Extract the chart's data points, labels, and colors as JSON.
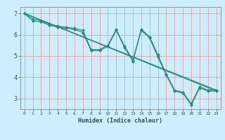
{
  "xlabel": "Humidex (Indice chaleur)",
  "bg_color": "#cceeff",
  "grid_color": "#e8a0a0",
  "line_color": "#2e8b7a",
  "marker_color": "#2e8b7a",
  "xlim": [
    -0.5,
    23.5
  ],
  "ylim": [
    2.5,
    7.3
  ],
  "yticks": [
    3,
    4,
    5,
    6,
    7
  ],
  "xticks": [
    0,
    1,
    2,
    3,
    4,
    5,
    6,
    7,
    8,
    9,
    10,
    11,
    12,
    13,
    14,
    15,
    16,
    17,
    18,
    19,
    20,
    21,
    22,
    23
  ],
  "line1_x": [
    0,
    1,
    2,
    3,
    4,
    5,
    6,
    7,
    8,
    9,
    10,
    11,
    12,
    13,
    14,
    15,
    16,
    17,
    18,
    19,
    20,
    21,
    22,
    23
  ],
  "line1_y": [
    7.0,
    6.65,
    6.6,
    6.45,
    6.35,
    6.3,
    6.25,
    6.1,
    5.25,
    5.25,
    5.45,
    6.2,
    5.4,
    4.75,
    6.2,
    5.85,
    4.95,
    4.1,
    3.35,
    3.25,
    2.7,
    3.5,
    3.35,
    3.35
  ],
  "line2_x": [
    0,
    1,
    2,
    3,
    4,
    5,
    6,
    7,
    8,
    9,
    10,
    11,
    12,
    13,
    14,
    15,
    16,
    17,
    18,
    19,
    20,
    21,
    22,
    23
  ],
  "line2_y": [
    7.0,
    6.75,
    6.65,
    6.5,
    6.4,
    6.35,
    6.3,
    6.2,
    5.3,
    5.3,
    5.5,
    6.25,
    5.45,
    4.8,
    6.25,
    5.9,
    5.05,
    4.15,
    3.4,
    3.3,
    2.75,
    3.55,
    3.4,
    3.4
  ],
  "line3_x": [
    0,
    23
  ],
  "line3_y": [
    7.0,
    3.35
  ],
  "line4_x": [
    0,
    23
  ],
  "line4_y": [
    7.0,
    3.4
  ]
}
